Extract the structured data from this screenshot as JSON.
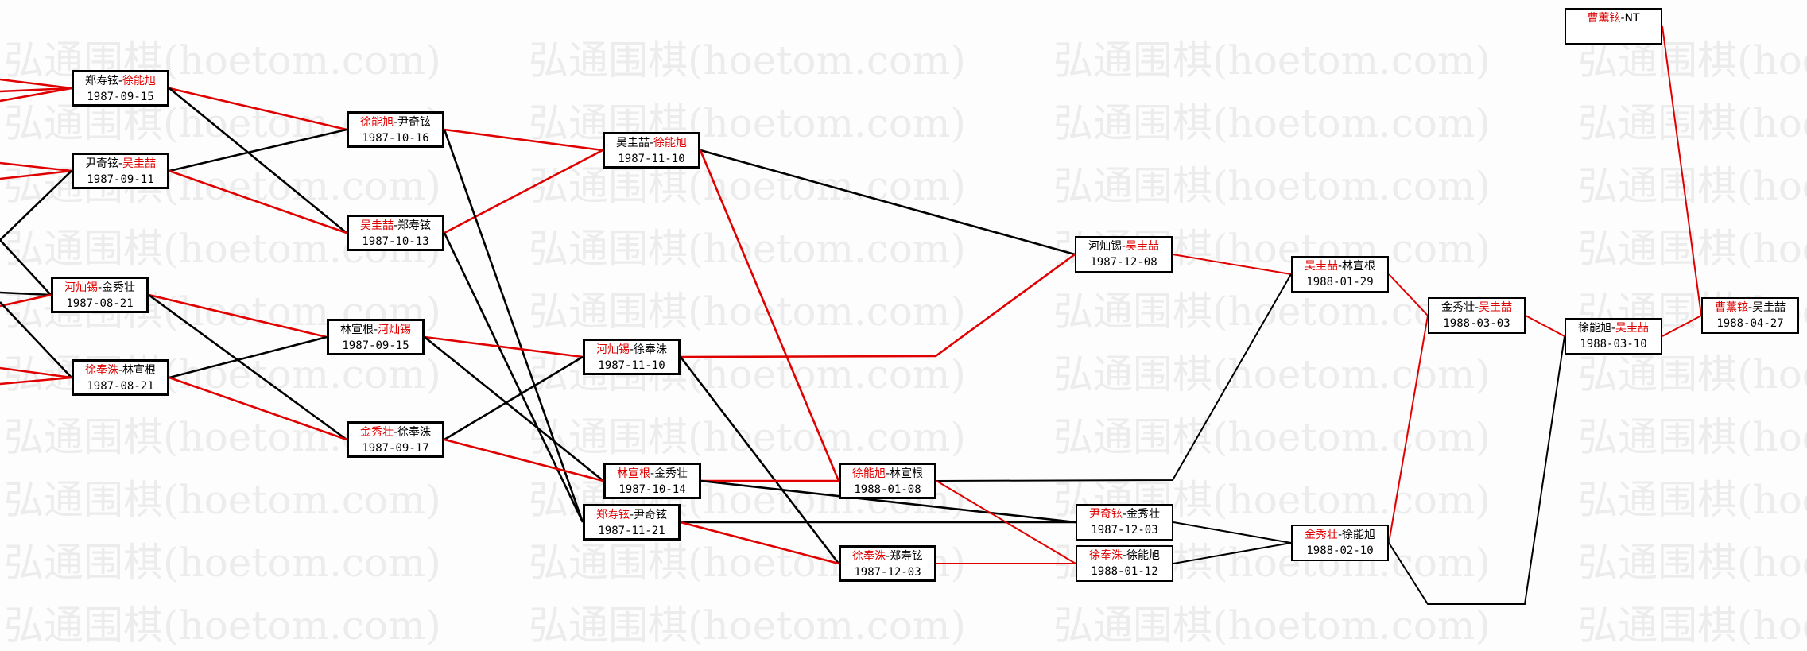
{
  "watermark": "弘通围棋(hoetom.com)",
  "colors": {
    "winner": "#e00000",
    "loser": "#000000",
    "line_red": "#e00000",
    "line_black": "#000000"
  },
  "separator": "-",
  "nodes": [
    {
      "p1": "郑寿铉",
      "p2": "徐能旭",
      "winner": 2,
      "date": "1987-09-15"
    },
    {
      "p1": "尹奇铉",
      "p2": "吴圭喆",
      "winner": 2,
      "date": "1987-09-11"
    },
    {
      "p1": "河灿锡",
      "p2": "金秀壮",
      "winner": 1,
      "date": "1987-08-21"
    },
    {
      "p1": "徐奉洙",
      "p2": "林宣根",
      "winner": 1,
      "date": "1987-08-21"
    },
    {
      "p1": "徐能旭",
      "p2": "尹奇铉",
      "winner": 1,
      "date": "1987-10-16"
    },
    {
      "p1": "吴圭喆",
      "p2": "郑寿铉",
      "winner": 1,
      "date": "1987-10-13"
    },
    {
      "p1": "林宣根",
      "p2": "河灿锡",
      "winner": 2,
      "date": "1987-09-15"
    },
    {
      "p1": "金秀壮",
      "p2": "徐奉洙",
      "winner": 1,
      "date": "1987-09-17"
    },
    {
      "p1": "吴圭喆",
      "p2": "徐能旭",
      "winner": 2,
      "date": "1987-11-10"
    },
    {
      "p1": "河灿锡",
      "p2": "徐奉洙",
      "winner": 1,
      "date": "1987-11-10"
    },
    {
      "p1": "林宣根",
      "p2": "金秀壮",
      "winner": 1,
      "date": "1987-10-14"
    },
    {
      "p1": "郑寿铉",
      "p2": "尹奇铉",
      "winner": 1,
      "date": "1987-11-21"
    },
    {
      "p1": "徐能旭",
      "p2": "林宣根",
      "winner": 1,
      "date": "1988-01-08"
    },
    {
      "p1": "徐奉洙",
      "p2": "郑寿铉",
      "winner": 1,
      "date": "1987-12-03"
    },
    {
      "p1": "河灿锡",
      "p2": "吴圭喆",
      "winner": 2,
      "date": "1987-12-08"
    },
    {
      "p1": "尹奇铉",
      "p2": "金秀壮",
      "winner": 1,
      "date": "1987-12-03"
    },
    {
      "p1": "徐奉洙",
      "p2": "徐能旭",
      "winner": 1,
      "date": "1988-01-12"
    },
    {
      "p1": "吴圭喆",
      "p2": "林宣根",
      "winner": 1,
      "date": "1988-01-29"
    },
    {
      "p1": "金秀壮",
      "p2": "徐能旭",
      "winner": 1,
      "date": "1988-02-10"
    },
    {
      "p1": "金秀壮",
      "p2": "吴圭喆",
      "winner": 2,
      "date": "1988-03-03"
    },
    {
      "p1": "徐能旭",
      "p2": "吴圭喆",
      "winner": 2,
      "date": "1988-03-10"
    },
    {
      "p1": "曹薰铉",
      "p2": "NT",
      "winner": 1,
      "date": ""
    },
    {
      "p1": "曹薰铉",
      "p2": "吴圭喆",
      "winner": 1,
      "date": "1988-04-27"
    }
  ],
  "edges": [
    {
      "from": 0,
      "to": 4,
      "color": "red"
    },
    {
      "from": 0,
      "to": 5,
      "color": "black"
    },
    {
      "from": 1,
      "to": 4,
      "color": "black"
    },
    {
      "from": 1,
      "to": 5,
      "color": "red"
    },
    {
      "from": 4,
      "to": 8,
      "color": "red"
    },
    {
      "from": 5,
      "to": 8,
      "color": "red"
    },
    {
      "from": 4,
      "to": 11,
      "color": "black"
    },
    {
      "from": 5,
      "to": 11,
      "color": "black"
    },
    {
      "from": 2,
      "to": 6,
      "color": "red"
    },
    {
      "from": 2,
      "to": 7,
      "color": "black"
    },
    {
      "from": 3,
      "to": 6,
      "color": "black"
    },
    {
      "from": 3,
      "to": 7,
      "color": "red"
    },
    {
      "from": 6,
      "to": 9,
      "color": "red"
    },
    {
      "from": 7,
      "to": 9,
      "color": "black"
    },
    {
      "from": 6,
      "to": 10,
      "color": "black"
    },
    {
      "from": 7,
      "to": 10,
      "color": "red"
    },
    {
      "from": 8,
      "to": 14,
      "color": "black"
    },
    {
      "from": 8,
      "to": 12,
      "color": "red"
    },
    {
      "from": 9,
      "to": 14,
      "color": "red"
    },
    {
      "from": 9,
      "to": 13,
      "color": "black"
    },
    {
      "from": 10,
      "to": 12,
      "color": "red"
    },
    {
      "from": 10,
      "to": 15,
      "color": "black"
    },
    {
      "from": 11,
      "to": 15,
      "color": "black"
    },
    {
      "from": 11,
      "to": 13,
      "color": "red"
    },
    {
      "from": 14,
      "to": 17,
      "color": "red"
    },
    {
      "from": 12,
      "to": 17,
      "color": "black"
    },
    {
      "from": 12,
      "to": 16,
      "color": "red"
    },
    {
      "from": 13,
      "to": 16,
      "color": "red"
    },
    {
      "from": 15,
      "to": 18,
      "color": "black"
    },
    {
      "from": 16,
      "to": 18,
      "color": "black"
    },
    {
      "from": 17,
      "to": 19,
      "color": "red"
    },
    {
      "from": 18,
      "to": 19,
      "color": "red"
    },
    {
      "from": 18,
      "to": 20,
      "color": "black"
    },
    {
      "from": 19,
      "to": 20,
      "color": "red"
    },
    {
      "from": 20,
      "to": 22,
      "color": "red"
    },
    {
      "from": 21,
      "to": 22,
      "color": "red"
    }
  ],
  "incoming": [
    {
      "to": 0,
      "color": "red"
    },
    {
      "to": 0,
      "color": "red"
    },
    {
      "to": 0,
      "color": "red"
    },
    {
      "to": 1,
      "color": "red"
    },
    {
      "to": 1,
      "color": "red"
    },
    {
      "to": 1,
      "color": "black"
    },
    {
      "to": 2,
      "color": "black"
    },
    {
      "to": 2,
      "color": "black"
    },
    {
      "to": 2,
      "color": "red"
    },
    {
      "to": 3,
      "color": "black"
    },
    {
      "to": 3,
      "color": "red"
    },
    {
      "to": 3,
      "color": "red"
    }
  ]
}
